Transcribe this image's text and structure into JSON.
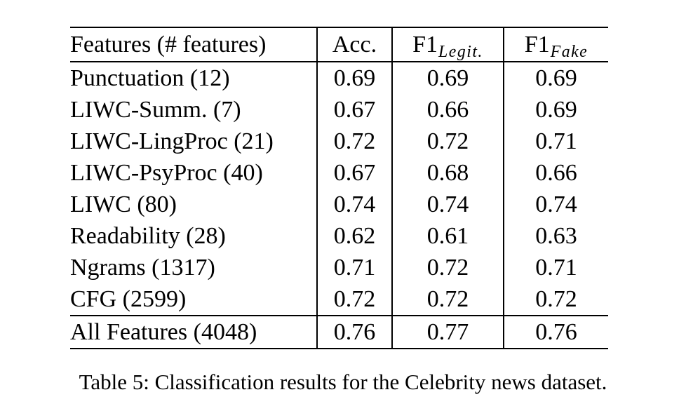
{
  "caption": "Table 5: Classification results for the Celebrity news dataset.",
  "colors": {
    "background": "#ffffff",
    "text": "#000000",
    "rule": "#000000"
  },
  "table": {
    "header": {
      "features": "Features (# features)",
      "acc": "Acc.",
      "f1_legit": {
        "base": "F1",
        "sub": "Legit."
      },
      "f1_fake": {
        "base": "F1",
        "sub": "Fake"
      }
    },
    "rows": [
      {
        "feature": "Punctuation (12)",
        "acc": "0.69",
        "f1_legit": "0.69",
        "f1_fake": "0.69"
      },
      {
        "feature": "LIWC-Summ. (7)",
        "acc": "0.67",
        "f1_legit": "0.66",
        "f1_fake": "0.69"
      },
      {
        "feature": "LIWC-LingProc (21)",
        "acc": "0.72",
        "f1_legit": "0.72",
        "f1_fake": "0.71"
      },
      {
        "feature": "LIWC-PsyProc (40)",
        "acc": "0.67",
        "f1_legit": "0.68",
        "f1_fake": "0.66"
      },
      {
        "feature": "LIWC (80)",
        "acc": "0.74",
        "f1_legit": "0.74",
        "f1_fake": "0.74"
      },
      {
        "feature": "Readability (28)",
        "acc": "0.62",
        "f1_legit": "0.61",
        "f1_fake": "0.63"
      },
      {
        "feature": "Ngrams (1317)",
        "acc": "0.71",
        "f1_legit": "0.72",
        "f1_fake": "0.71"
      },
      {
        "feature": "CFG (2599)",
        "acc": "0.72",
        "f1_legit": "0.72",
        "f1_fake": "0.72"
      }
    ],
    "summary": {
      "feature": "All Features (4048)",
      "acc": "0.76",
      "f1_legit": "0.77",
      "f1_fake": "0.76"
    }
  }
}
